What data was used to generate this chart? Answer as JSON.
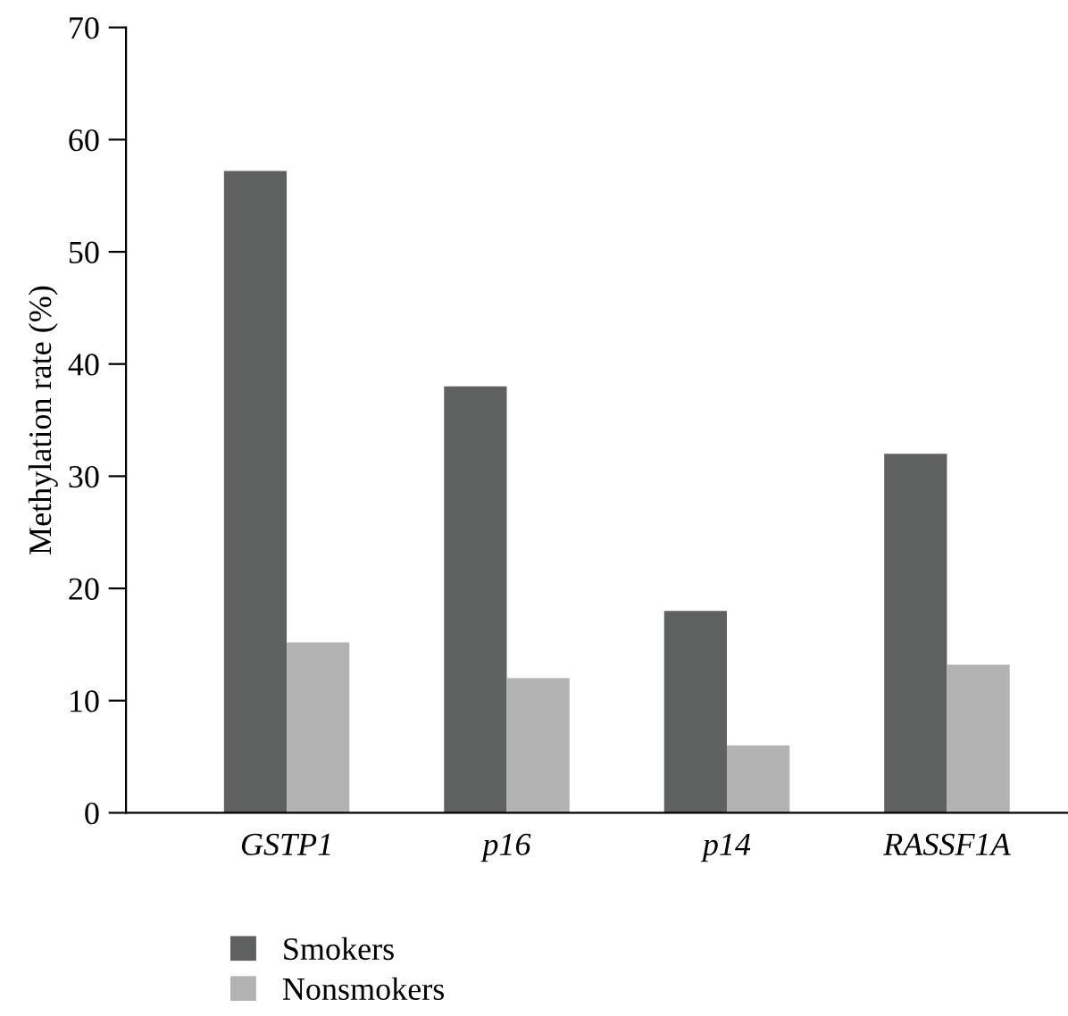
{
  "chart_data": {
    "type": "bar",
    "ylabel": "Methylation rate (%)",
    "categories": [
      "GSTP1",
      "p16",
      "p14",
      "RASSF1A"
    ],
    "series": [
      {
        "name": "Smokers",
        "color": "#5f6160",
        "values": [
          57.2,
          38,
          18,
          32
        ]
      },
      {
        "name": "Nonsmokers",
        "color": "#b3b3b3",
        "values": [
          15.2,
          12,
          6,
          13.2
        ]
      }
    ],
    "ylim": [
      0,
      70
    ],
    "yticks": [
      0,
      10,
      20,
      30,
      40,
      50,
      60,
      70
    ],
    "grid": false,
    "legend": "bottom left"
  }
}
